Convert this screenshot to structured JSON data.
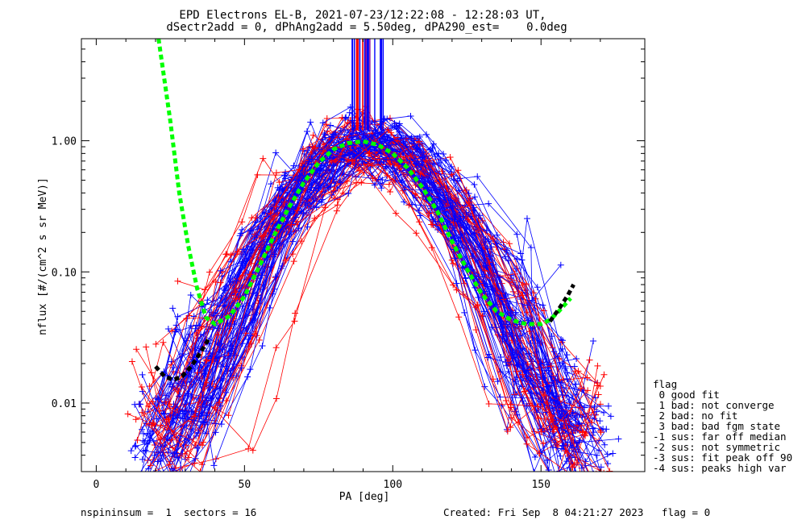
{
  "chart_data": {
    "type": "line",
    "title": "EPD Electrons EL-B, 2021-07-23/12:22:08 - 12:28:03 UT,",
    "subtitle": "dSectr2add = 0, dPhAng2add = 5.50deg, dPA290_est=    0.0deg",
    "xlabel": "PA [deg]",
    "ylabel": "nflux [#/(cm^2 s sr MeV)]",
    "xlim": [
      -5,
      185
    ],
    "ylim": [
      0.003,
      6.0
    ],
    "yscale": "log",
    "x_ticks": [
      0,
      50,
      100,
      150
    ],
    "x_tick_labels": [
      "0",
      "50",
      "100",
      "150"
    ],
    "y_ticks": [
      0.01,
      0.1,
      1.0
    ],
    "y_tick_labels": [
      "0.01",
      "0.10",
      "1.00"
    ],
    "grid": false,
    "legend_position": "right-outside",
    "colors": {
      "red": "#ff0000",
      "blue": "#0000ff",
      "fit": "#00ff00",
      "fit_extrap": "#000000",
      "purple": "#8000a0"
    },
    "series": [
      {
        "style": "dashed",
        "color": "#00ff00",
        "x": [
          21,
          25,
          28,
          31,
          34,
          37,
          40,
          45,
          50,
          55,
          60,
          65,
          70,
          75,
          80,
          85,
          90,
          95,
          100,
          105,
          110,
          115,
          120,
          125,
          130,
          135,
          140,
          145,
          150,
          153,
          156,
          160
        ],
        "y": [
          6.0,
          1.4,
          0.4,
          0.16,
          0.075,
          0.045,
          0.04,
          0.046,
          0.065,
          0.11,
          0.19,
          0.31,
          0.48,
          0.68,
          0.86,
          0.96,
          0.99,
          0.93,
          0.8,
          0.62,
          0.44,
          0.29,
          0.17,
          0.105,
          0.068,
          0.05,
          0.043,
          0.04,
          0.04,
          0.043,
          0.05,
          0.063
        ]
      },
      {
        "style": "dashed",
        "color": "#000000",
        "x": [
          20,
          23,
          26,
          29,
          32,
          35,
          38
        ],
        "y": [
          0.019,
          0.016,
          0.015,
          0.016,
          0.019,
          0.024,
          0.031
        ]
      },
      {
        "style": "dashed",
        "color": "#000000",
        "x": [
          153,
          156,
          159,
          161
        ],
        "y": [
          0.042,
          0.052,
          0.066,
          0.08
        ]
      }
    ],
    "annotation": "nspininsum =  1  sectors = 16"
  },
  "legend": {
    "title": "flag",
    "items": [
      " 0 good fit",
      " 1 bad: not converge",
      " 2 bad: no fit",
      " 3 bad: bad fgm state",
      "-1 sus: far off median",
      "-2 sus: not symmetric",
      "-3 sus: fit peak off 90",
      "-4 sus: peaks high var"
    ]
  },
  "footer": {
    "left": "nspininsum =  1  sectors = 16",
    "right": "Created: Fri Sep  8 04:21:27 2023   flag = 0"
  }
}
